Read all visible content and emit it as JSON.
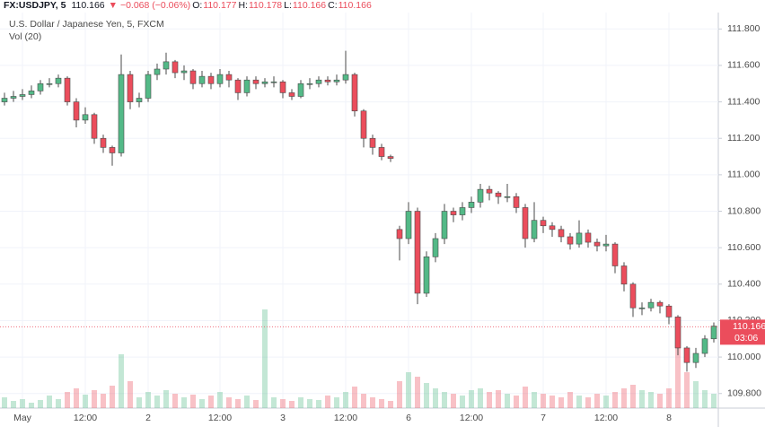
{
  "chart_data": {
    "type": "candlestick",
    "symbol": "FX:USDJPY, 5",
    "last": 110.166,
    "change": "▼ −0.068 (−0.06%)",
    "quote": [
      {
        "label": "O:",
        "value": 110.177
      },
      {
        "label": "H:",
        "value": 110.178
      },
      {
        "label": "L:",
        "value": 110.166
      },
      {
        "label": "C:",
        "value": 110.166
      }
    ],
    "title": "U.S. Dollar / Japanese Yen, 5, FXCM",
    "volume_label": "Vol (20)",
    "countdown": "03:06",
    "up_color": "#53b987",
    "down_color": "#eb4d5c",
    "grid": true,
    "categories": [
      null,
      null,
      "May",
      null,
      null,
      null,
      null,
      null,
      null,
      "12:00",
      null,
      null,
      null,
      null,
      null,
      null,
      "2",
      null,
      null,
      null,
      null,
      null,
      null,
      null,
      "12:00",
      null,
      null,
      null,
      null,
      null,
      null,
      "3",
      null,
      null,
      null,
      null,
      null,
      null,
      "12:00",
      null,
      null,
      null,
      null,
      null,
      null,
      "6",
      null,
      null,
      null,
      null,
      null,
      null,
      "12:00",
      null,
      null,
      null,
      null,
      null,
      null,
      null,
      "7",
      null,
      null,
      null,
      null,
      null,
      null,
      "12:00",
      null,
      null,
      null,
      null,
      null,
      null,
      "8",
      null,
      null,
      null,
      null,
      null
    ],
    "open": [
      111.4,
      111.42,
      111.43,
      111.44,
      111.46,
      111.5,
      111.5,
      111.53,
      111.4,
      111.3,
      111.33,
      111.2,
      111.15,
      111.12,
      111.55,
      111.4,
      111.42,
      111.55,
      111.58,
      111.62,
      111.56,
      111.57,
      111.5,
      111.54,
      111.5,
      111.55,
      111.52,
      111.45,
      111.52,
      111.5,
      111.51,
      111.51,
      111.45,
      111.43,
      111.5,
      111.5,
      111.52,
      111.51,
      111.52,
      111.55,
      111.35,
      111.2,
      111.15,
      111.1,
      110.7,
      110.65,
      110.8,
      110.35,
      110.55,
      110.65,
      110.8,
      110.78,
      110.82,
      110.85,
      110.92,
      110.9,
      110.88,
      110.88,
      110.82,
      110.65,
      110.75,
      110.72,
      110.7,
      110.66,
      110.62,
      110.68,
      110.63,
      110.61,
      110.62,
      110.5,
      110.4,
      110.27,
      110.27,
      110.3,
      110.28,
      110.22,
      110.05,
      109.97,
      110.02,
      110.1
    ],
    "high": [
      111.45,
      111.46,
      111.47,
      111.49,
      111.52,
      111.53,
      111.55,
      111.54,
      111.42,
      111.37,
      111.34,
      111.22,
      111.16,
      111.66,
      111.57,
      111.45,
      111.57,
      111.61,
      111.67,
      111.63,
      111.6,
      111.58,
      111.57,
      111.56,
      111.58,
      111.57,
      111.53,
      111.54,
      111.54,
      111.53,
      111.54,
      111.52,
      111.47,
      111.52,
      111.53,
      111.54,
      111.54,
      111.55,
      111.68,
      111.56,
      111.36,
      111.22,
      111.17,
      111.11,
      110.72,
      110.85,
      110.82,
      110.58,
      110.68,
      110.84,
      110.82,
      110.85,
      110.88,
      110.95,
      110.94,
      110.91,
      110.95,
      110.9,
      110.84,
      110.85,
      110.77,
      110.74,
      110.72,
      110.68,
      110.75,
      110.7,
      110.65,
      110.67,
      110.63,
      110.52,
      110.41,
      110.3,
      110.32,
      110.31,
      110.29,
      110.23,
      110.06,
      110.05,
      110.12,
      110.19
    ],
    "low": [
      111.38,
      111.4,
      111.41,
      111.42,
      111.44,
      111.48,
      111.48,
      111.38,
      111.26,
      111.28,
      111.17,
      111.12,
      111.05,
      111.1,
      111.36,
      111.37,
      111.4,
      111.52,
      111.55,
      111.53,
      111.52,
      111.47,
      111.48,
      111.47,
      111.48,
      111.48,
      111.41,
      111.43,
      111.47,
      111.48,
      111.48,
      111.42,
      111.41,
      111.42,
      111.47,
      111.48,
      111.49,
      111.49,
      111.5,
      111.32,
      111.15,
      111.11,
      111.08,
      111.07,
      110.53,
      110.62,
      110.29,
      110.33,
      110.52,
      110.62,
      110.74,
      110.75,
      110.79,
      110.82,
      110.86,
      110.84,
      110.85,
      110.79,
      110.6,
      110.63,
      110.68,
      110.66,
      110.63,
      110.59,
      110.6,
      110.6,
      110.58,
      110.58,
      110.46,
      110.36,
      110.22,
      110.23,
      110.25,
      110.24,
      110.18,
      110.01,
      109.92,
      109.94,
      110.0,
      110.08
    ],
    "close": [
      111.42,
      111.43,
      111.44,
      111.46,
      111.5,
      111.5,
      111.53,
      111.4,
      111.3,
      111.33,
      111.2,
      111.15,
      111.12,
      111.55,
      111.4,
      111.42,
      111.55,
      111.58,
      111.62,
      111.56,
      111.57,
      111.5,
      111.54,
      111.5,
      111.55,
      111.52,
      111.45,
      111.52,
      111.5,
      111.51,
      111.51,
      111.45,
      111.43,
      111.5,
      111.5,
      111.52,
      111.51,
      111.52,
      111.55,
      111.35,
      111.2,
      111.15,
      111.1,
      111.09,
      110.65,
      110.8,
      110.35,
      110.55,
      110.65,
      110.8,
      110.78,
      110.82,
      110.85,
      110.92,
      110.9,
      110.88,
      110.88,
      110.82,
      110.65,
      110.75,
      110.72,
      110.7,
      110.66,
      110.62,
      110.68,
      110.63,
      110.61,
      110.62,
      110.5,
      110.4,
      110.27,
      110.27,
      110.3,
      110.28,
      110.22,
      110.05,
      109.97,
      110.02,
      110.1,
      110.17
    ],
    "volume": [
      12,
      8,
      10,
      6,
      9,
      14,
      10,
      18,
      22,
      15,
      20,
      16,
      25,
      60,
      30,
      12,
      18,
      14,
      20,
      16,
      12,
      15,
      10,
      14,
      18,
      12,
      10,
      14,
      9,
      110,
      12,
      10,
      8,
      12,
      10,
      9,
      14,
      12,
      18,
      24,
      16,
      12,
      10,
      8,
      30,
      40,
      35,
      28,
      22,
      18,
      16,
      14,
      20,
      22,
      18,
      20,
      16,
      14,
      24,
      18,
      16,
      14,
      12,
      18,
      14,
      12,
      16,
      14,
      18,
      22,
      26,
      20,
      18,
      16,
      22,
      90,
      40,
      30,
      20,
      16
    ],
    "ylim": [
      109.72,
      111.89
    ],
    "yticks": [
      {
        "value": 109.8,
        "label": "109.800"
      },
      {
        "value": 110.0,
        "label": "110.000"
      },
      {
        "value": 110.2,
        "label": "110.200"
      },
      {
        "value": 110.4,
        "label": "110.400"
      },
      {
        "value": 110.6,
        "label": "110.600"
      },
      {
        "value": 110.8,
        "label": "110.800"
      },
      {
        "value": 111.0,
        "label": "111.000"
      },
      {
        "value": 111.2,
        "label": "111.200"
      },
      {
        "value": 111.4,
        "label": "111.400"
      },
      {
        "value": 111.6,
        "label": "111.600"
      },
      {
        "value": 111.8,
        "label": "111.800"
      }
    ]
  }
}
